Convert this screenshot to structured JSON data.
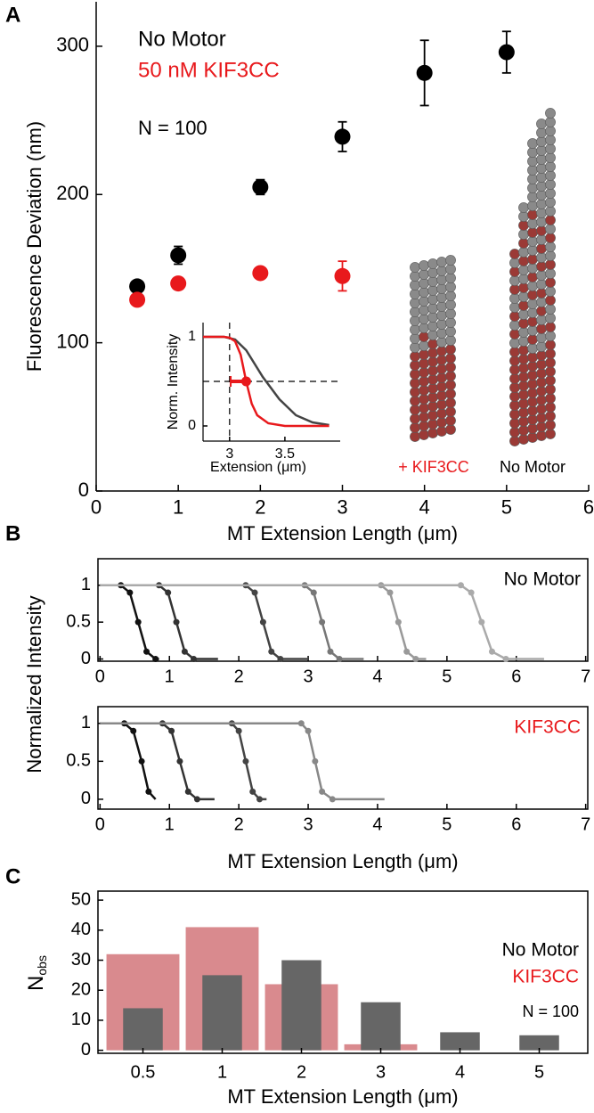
{
  "chart_data": [
    {
      "type": "scatter",
      "panel_label": "A",
      "xlabel": "MT Extension Length (μm)",
      "ylabel": "Fluorescence Deviation (nm)",
      "xlim": [
        0,
        6
      ],
      "ylim": [
        0,
        330
      ],
      "xticks": [
        0,
        1,
        2,
        3,
        4,
        5,
        6
      ],
      "yticks": [
        0,
        100,
        200,
        300
      ],
      "series": [
        {
          "name": "No Motor",
          "color": "#000000",
          "x": [
            0.5,
            1,
            2,
            3,
            4,
            5
          ],
          "values": [
            138,
            159,
            205,
            239,
            282,
            296
          ],
          "errors": [
            3,
            6,
            5,
            10,
            22,
            14
          ]
        },
        {
          "name": "50 nM KIF3CC",
          "color": "#e8191c",
          "x": [
            0.5,
            1,
            2,
            3
          ],
          "values": [
            129,
            140,
            147,
            145
          ],
          "errors": [
            2,
            3,
            2,
            10
          ]
        }
      ],
      "annotations": [
        "N = 100",
        "+ KIF3CC",
        "No Motor"
      ]
    },
    {
      "type": "line",
      "xlabel": "Extension (μm)",
      "ylabel": "Norm. Intensity",
      "xlim": [
        2.76,
        4.0
      ],
      "ylim": [
        -0.17,
        1.16
      ],
      "xticks": [
        3,
        3.5
      ],
      "yticks": [
        0,
        1
      ],
      "guides": {
        "x": 3,
        "y": 0.5
      },
      "series": [
        {
          "color": "#444444",
          "x": [
            2.76,
            2.95,
            3.05,
            3.15,
            3.3,
            3.45,
            3.6,
            3.75,
            3.9
          ],
          "values": [
            1,
            1,
            0.97,
            0.85,
            0.55,
            0.3,
            0.12,
            0.04,
            0.01
          ]
        },
        {
          "color": "#e8191c",
          "x": [
            2.76,
            2.95,
            3.0,
            3.05,
            3.1,
            3.15,
            3.2,
            3.25,
            3.35,
            3.5,
            3.9
          ],
          "values": [
            1,
            1,
            0.99,
            0.95,
            0.8,
            0.5,
            0.25,
            0.12,
            0.03,
            0,
            0
          ]
        }
      ],
      "marker": {
        "x": 3.15,
        "y": 0.5,
        "xerr": 0.14,
        "color": "#e8191c"
      }
    },
    {
      "type": "line",
      "panel_label": "B",
      "ylabel": "Normalized Intensity",
      "label": "No Motor",
      "label_color": "#000000",
      "xlim": [
        -0.03,
        7.03
      ],
      "ylim": [
        -0.03,
        1.36
      ],
      "xticks": [
        0,
        1,
        2,
        3,
        4,
        5,
        6,
        7
      ],
      "yticks": [
        0,
        0.5,
        1
      ],
      "series": [
        {
          "color": "#111111",
          "x": [
            0,
            0.3,
            0.43,
            0.55,
            0.67,
            0.8,
            0.85
          ],
          "values": [
            1,
            1,
            0.9,
            0.5,
            0.1,
            0,
            0
          ]
        },
        {
          "color": "#333333",
          "x": [
            0,
            0.85,
            0.98,
            1.1,
            1.22,
            1.35,
            1.7
          ],
          "values": [
            1,
            1,
            0.9,
            0.5,
            0.1,
            0,
            0
          ]
        },
        {
          "color": "#444444",
          "x": [
            0,
            2.1,
            2.23,
            2.35,
            2.47,
            2.6,
            3.0
          ],
          "values": [
            1,
            1,
            0.9,
            0.5,
            0.1,
            0,
            0
          ]
        },
        {
          "color": "#777777",
          "x": [
            0,
            2.95,
            3.08,
            3.2,
            3.32,
            3.45,
            3.8
          ],
          "values": [
            1,
            1,
            0.9,
            0.5,
            0.1,
            0,
            0
          ]
        },
        {
          "color": "#999999",
          "x": [
            0,
            4.05,
            4.18,
            4.3,
            4.42,
            4.55,
            4.7
          ],
          "values": [
            1,
            1,
            0.9,
            0.5,
            0.1,
            0,
            0
          ]
        },
        {
          "color": "#aaaaaa",
          "x": [
            0,
            5.2,
            5.35,
            5.5,
            5.65,
            5.85,
            6.4
          ],
          "values": [
            1,
            1,
            0.9,
            0.5,
            0.1,
            0,
            0
          ]
        }
      ]
    },
    {
      "type": "line",
      "xlabel": "MT Extension Length (μm)",
      "label": "KIF3CC",
      "label_color": "#e8191c",
      "xlim": [
        -0.03,
        7.03
      ],
      "ylim": [
        -0.13,
        1.22
      ],
      "xticks": [
        0,
        1,
        2,
        3,
        4,
        5,
        6,
        7
      ],
      "yticks": [
        0,
        0.5,
        1
      ],
      "series": [
        {
          "color": "#111111",
          "x": [
            0,
            0.35,
            0.48,
            0.6,
            0.7,
            0.8
          ],
          "values": [
            1,
            1,
            0.9,
            0.5,
            0.1,
            0
          ]
        },
        {
          "color": "#333333",
          "x": [
            0,
            0.9,
            1.03,
            1.15,
            1.27,
            1.4,
            1.65
          ],
          "values": [
            1,
            1,
            0.9,
            0.5,
            0.1,
            0,
            0
          ]
        },
        {
          "color": "#444444",
          "x": [
            0,
            1.9,
            2.0,
            2.1,
            2.2,
            2.3,
            2.4
          ],
          "values": [
            1,
            1,
            0.9,
            0.5,
            0.1,
            0,
            0
          ]
        },
        {
          "color": "#888888",
          "x": [
            0,
            2.9,
            3.0,
            3.1,
            3.2,
            3.35,
            4.1
          ],
          "values": [
            1,
            1,
            0.9,
            0.5,
            0.1,
            0,
            0
          ]
        }
      ]
    },
    {
      "type": "bar",
      "panel_label": "C",
      "xlabel": "MT Extension Length (μm)",
      "ylabel": "N",
      "ylabel_sub": "obs",
      "categories": [
        "0.5",
        "1",
        "2",
        "3",
        "4",
        "5"
      ],
      "ylim": [
        -1,
        53
      ],
      "yticks": [
        0,
        10,
        20,
        30,
        40,
        50
      ],
      "series": [
        {
          "name": "No Motor",
          "color": "#666666",
          "values": [
            14,
            25,
            30,
            16,
            6,
            5
          ]
        },
        {
          "name": "KIF3CC",
          "color": "#d98a8e",
          "label_color": "#e8191c",
          "values": [
            32,
            41,
            22,
            2,
            0,
            0
          ]
        }
      ],
      "annotations": [
        "N = 100"
      ]
    }
  ]
}
